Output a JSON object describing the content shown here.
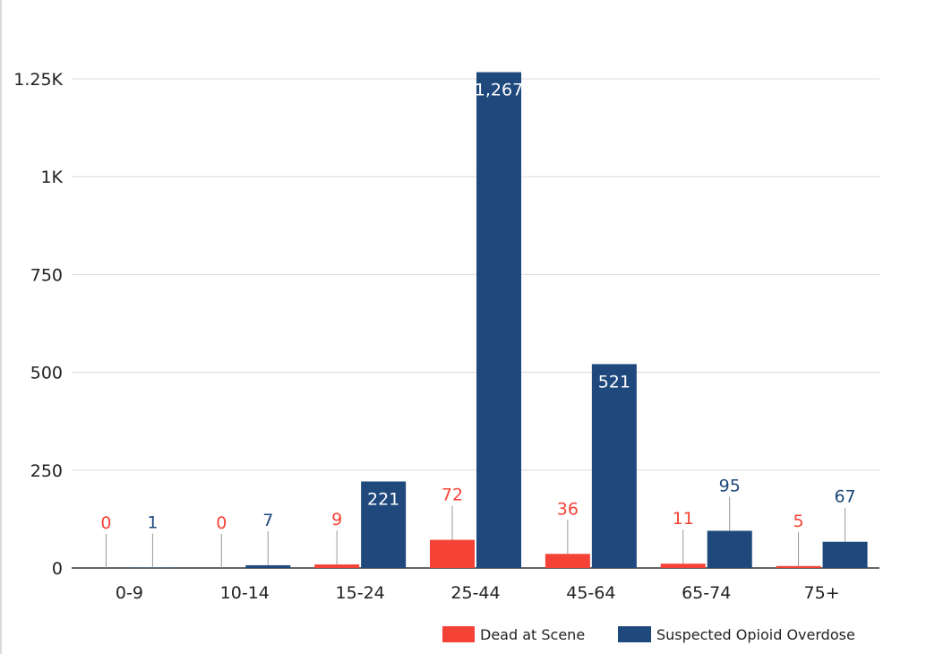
{
  "chart_data": {
    "type": "bar",
    "title": "",
    "xlabel": "",
    "ylabel": "",
    "categories": [
      "0-9",
      "10-14",
      "15-24",
      "25-44",
      "45-64",
      "65-74",
      "75+"
    ],
    "series": [
      {
        "name": "Dead at Scene",
        "color": "#f44336",
        "values": [
          0,
          0,
          9,
          72,
          36,
          11,
          5
        ],
        "labels": [
          "0",
          "0",
          "9",
          "72",
          "36",
          "11",
          "5"
        ]
      },
      {
        "name": "Suspected Opioid Overdose",
        "color": "#1f497d",
        "values": [
          1,
          7,
          221,
          1267,
          521,
          95,
          67
        ],
        "labels": [
          "1",
          "7",
          "221",
          "1,267",
          "521",
          "95",
          "67"
        ]
      }
    ],
    "ylim": [
      0,
      1250
    ],
    "yticks": [
      0,
      250,
      500,
      750,
      1000,
      1250
    ],
    "ytick_labels": [
      "0",
      "250",
      "500",
      "750",
      "1K",
      "1.25K"
    ],
    "grid": true,
    "legend": "bottom-right"
  }
}
